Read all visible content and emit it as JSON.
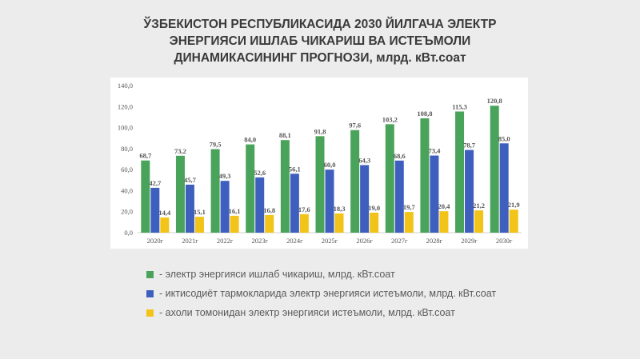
{
  "title_lines": [
    "ЎЗБЕКИСТОН РЕСПУБЛИКАСИДА 2030 ЙИЛГАЧА ЭЛЕКТР",
    "ЭНЕРГИЯСИ ИШЛАБ ЧИКАРИШ ВА ИСТЕЪМОЛИ",
    "ДИНАМИКАСИНИНГ ПРОГНОЗИ, млрд. кВт.соат"
  ],
  "chart_data": {
    "type": "bar",
    "categories": [
      "2020г",
      "2021г",
      "2022г",
      "2023г",
      "2024г",
      "2025г",
      "2026г",
      "2027г",
      "2028г",
      "2029г",
      "2030г"
    ],
    "y_ticks": [
      "0,0",
      "20,0",
      "40,0",
      "60,0",
      "80,0",
      "100,0",
      "120,0",
      "140,0"
    ],
    "ylim": [
      0,
      140
    ],
    "grid": false,
    "legend_position": "bottom",
    "series": [
      {
        "name": "- электр энергияси ишлаб чикариш, млрд. кВт.соат",
        "color": "#4aa35a",
        "values": [
          68.7,
          73.2,
          79.5,
          84.0,
          88.1,
          91.8,
          97.6,
          103.2,
          108.8,
          115.3,
          120.8
        ],
        "labels": [
          "68,7",
          "73,2",
          "79,5",
          "84,0",
          "88,1",
          "91,8",
          "97,6",
          "103,2",
          "108,8",
          "115,3",
          "120,8"
        ]
      },
      {
        "name": "- иктисодиёт тармокларида электр энергияси истеъмоли, млрд. кВт.соат",
        "color": "#3f5fbf",
        "values": [
          42.7,
          45.7,
          49.3,
          52.6,
          56.1,
          60.0,
          64.3,
          68.6,
          73.4,
          78.7,
          85.0
        ],
        "labels": [
          "42,7",
          "45,7",
          "49,3",
          "52,6",
          "56,1",
          "60,0",
          "64,3",
          "68,6",
          "73,4",
          "78,7",
          "85,0"
        ]
      },
      {
        "name": "- ахоли томонидан электр энергияси истеъмоли, млрд. кВт.соат",
        "color": "#f2c318",
        "values": [
          14.4,
          15.1,
          16.1,
          16.8,
          17.6,
          18.3,
          19.0,
          19.7,
          20.4,
          21.2,
          21.9
        ],
        "labels": [
          "14,4",
          "15,1",
          "16,1",
          "16,8",
          "17,6",
          "18,3",
          "19,0",
          "19,7",
          "20,4",
          "21,2",
          "21,9"
        ]
      }
    ]
  }
}
